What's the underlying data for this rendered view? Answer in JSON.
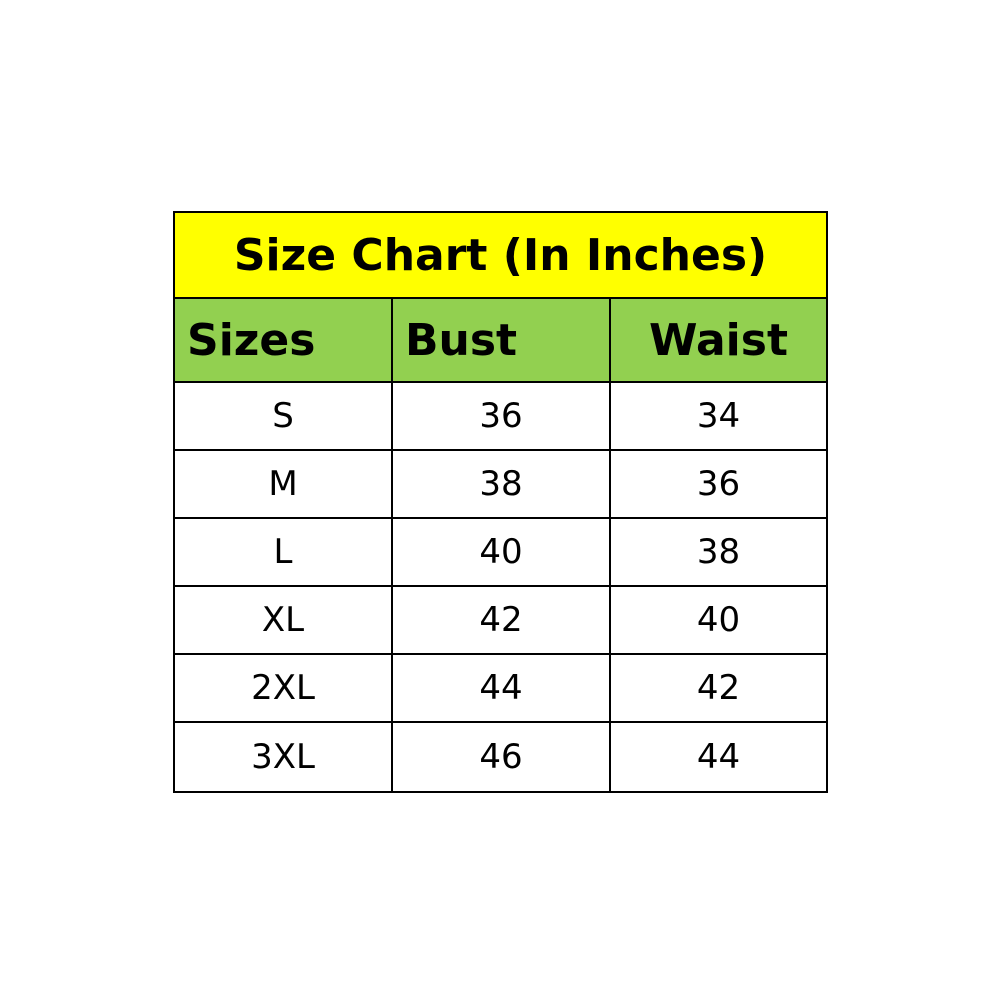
{
  "title": "Size Chart (In Inches)",
  "colors": {
    "title_bg": "#ffff00",
    "header_bg": "#92d050",
    "border": "#000000"
  },
  "headers": [
    "Sizes",
    "Bust",
    "Waist"
  ],
  "rows": [
    [
      "S",
      "36",
      "34"
    ],
    [
      "M",
      "38",
      "36"
    ],
    [
      "L",
      "40",
      "38"
    ],
    [
      "XL",
      "42",
      "40"
    ],
    [
      "2XL",
      "44",
      "42"
    ],
    [
      "3XL",
      "46",
      "44"
    ]
  ]
}
